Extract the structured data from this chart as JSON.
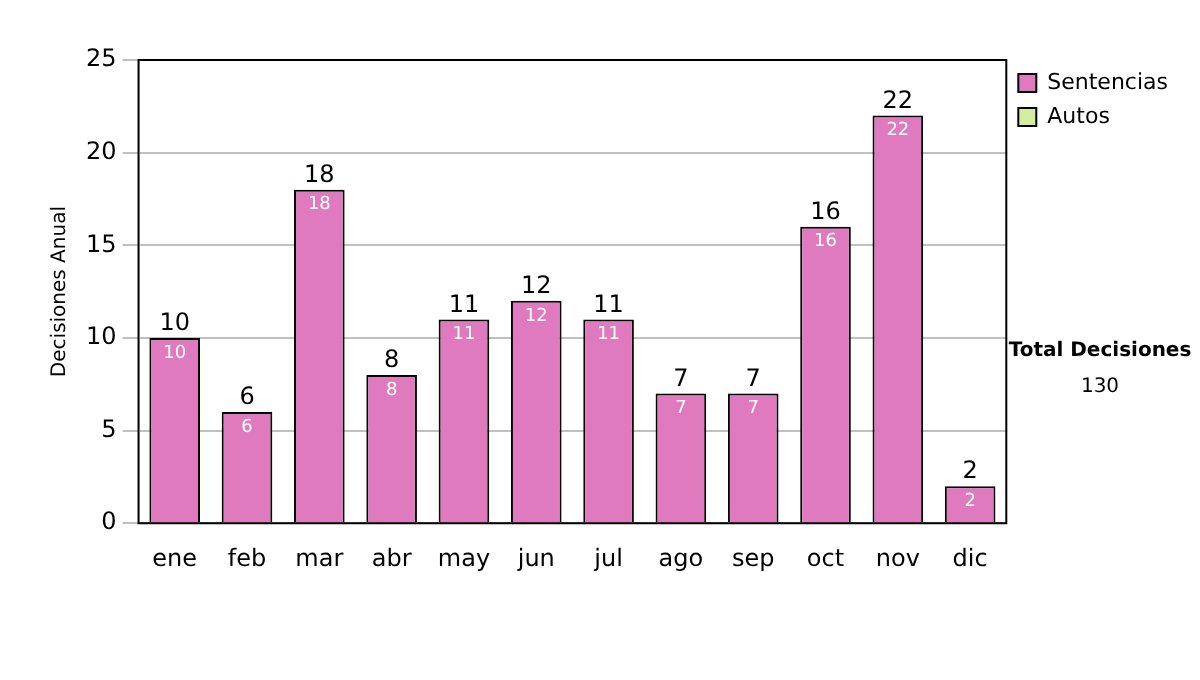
{
  "chart_data": {
    "type": "bar",
    "ylabel": "Decisiones Anual",
    "categories": [
      "ene",
      "feb",
      "mar",
      "abr",
      "may",
      "jun",
      "jul",
      "ago",
      "sep",
      "oct",
      "nov",
      "dic"
    ],
    "series": [
      {
        "name": "Sentencias",
        "color": "#e07abf",
        "values": [
          10,
          6,
          18,
          8,
          11,
          12,
          11,
          7,
          7,
          16,
          22,
          2
        ],
        "value_labels": [
          "10",
          "6",
          "18",
          "8",
          "11",
          "12",
          "11",
          "7",
          "7",
          "16",
          "22",
          "2"
        ]
      },
      {
        "name": "Autos",
        "color": "#d4ec9c",
        "values": [
          0,
          0,
          0,
          0,
          0,
          0,
          0,
          0,
          0,
          0,
          0,
          0
        ]
      }
    ],
    "stacked": true,
    "totals": [
      "10",
      "6",
      "18",
      "8",
      "11",
      "12",
      "11",
      "7",
      "7",
      "16",
      "22",
      "2"
    ],
    "ylim": [
      0,
      25
    ],
    "yticks": [
      0,
      5,
      10,
      15,
      20,
      25
    ],
    "grid": "y",
    "legend": "right",
    "annotations": [
      "Total Decisiones",
      "130"
    ]
  }
}
